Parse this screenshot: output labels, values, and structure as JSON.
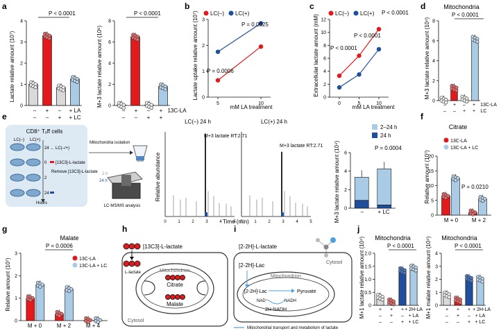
{
  "colors": {
    "red": "#e31a1c",
    "darkblue": "#1f4e9c",
    "lightblue": "#a9cbe6",
    "navy": "#173a78",
    "grey": "#d9d9d9",
    "text": "#111111",
    "pale_red": "#f0a6a6"
  },
  "panels": {
    "a": {
      "label": "a",
      "plot1_ylabel": "Lactate relative amount (10⁷)",
      "plot2_ylabel": "M+3 lactate relative amount (10⁶)",
      "pval1": "P < 0.0001",
      "pval2": "P < 0.0001",
      "xlabel": "13C-LA",
      "row1": [
        "–",
        "+",
        "–",
        "+ LA"
      ],
      "row2": [
        "–",
        "–",
        "+",
        "+ LC"
      ],
      "row1b": [
        "–",
        "+",
        "–",
        "+"
      ],
      "row2b": [
        "–",
        "–",
        "+",
        "+"
      ]
    },
    "b": {
      "label": "b",
      "ylabel": "Lactate uptake relative amount (10⁷)",
      "xlabel": "mM LA treatment",
      "legend_lcneg": "LC(–)",
      "legend_lcpos": "LC(+)",
      "p1": "P = 0.0006",
      "p2": "P = 0.0025"
    },
    "c": {
      "label": "c",
      "ylabel": "Extracellular lactate amount (mM)",
      "xlabel": "mM LA treatment",
      "legend_lcneg": "LC(–)",
      "legend_lcpos": "LC(+)",
      "p1": "P < 0.0001",
      "p2": "P < 0.0001",
      "p3": "P < 0.0001"
    },
    "d": {
      "label": "d",
      "title": "Mitochondria",
      "ylabel": "M+3 lactate relative amount (10⁴)",
      "pval": "P < 0.0001",
      "lbl1": "13C-LA",
      "lbl2": "LC"
    },
    "e": {
      "label": "e",
      "cells_title": "CD8⁺ Tₑff cells",
      "lcneg": "LC(–)",
      "lcpos": "LC(+)",
      "step0": "[13C3]-L-lactate",
      "step24": "24 ← LC(–/+)",
      "step0n": "0",
      "step2n": "2",
      "step24n": "24",
      "remove": "Remove [13C3]-L-lactate",
      "hours": "Hours",
      "mito_iso": "Mitochondria isolation",
      "twoh": "2 h",
      "twofourh": "24 h",
      "lcms": "LC-MS/MS analysis",
      "chrom1_title": "LC(–) 24 h",
      "chrom2_title": "LC(+) 24 h",
      "peak1": "M+3 lactate RT:2.71",
      "peak2": "M+3 lactate RT:2.71",
      "chrom_ylabel": "Relative abundance",
      "chrom_xlabel": "Time (min)",
      "bar_ylabel": "M+3 lactate relative amount (10⁴)",
      "legend1": "2–24 h",
      "legend2": "24 h",
      "pval": "P = 0.0004",
      "xt1": "–",
      "xt2": "+ LC"
    },
    "f": {
      "label": "f",
      "title": "Citrate",
      "ylabel": "Relative amount (10⁷)",
      "legend1": "13C-LA",
      "legend2": "13C-LA + LC",
      "pval": "P = 0.0210",
      "x1": "M + 0",
      "x2": "M + 2"
    },
    "g": {
      "label": "g",
      "title": "Malate",
      "ylabel": "Relative amount (10⁷)",
      "legend1": "13C-LA",
      "legend2": "13C-LA + LC",
      "pval": "P = 0.0006",
      "x1": "M + 0",
      "x2": "M + 2",
      "x3": "M + 4"
    },
    "h": {
      "label": "h",
      "tracer": "[13C3]-L-lactate",
      "llactate": "L-lactate",
      "mito": "Mitochondrion",
      "citrate": "Citrate",
      "malate": "Malate",
      "cytosol": "Cytosol"
    },
    "i": {
      "label": "i",
      "tracer": "[2-2H]-L-lactate",
      "cytosol": "Cytosol",
      "lac": "[2-2H]-Lac",
      "mito": "Mitochondrion",
      "lac2": "[2-2H]-Lac",
      "pyruvate": "Pyruvate",
      "nad": "NAD⁺",
      "nadh": "NADH",
      "nadh2": "2H-NADH",
      "legend": "Mitochondrial transport and metabolism of lactate"
    },
    "j": {
      "label": "j",
      "title1": "Mitochondria",
      "title2": "Mitochondria",
      "ylabel1": "M+1 lactate relative amount (10⁴)",
      "ylabel2": "M+1 malate relative amount (10⁴)",
      "pval1": "P < 0.0001",
      "pval2": "P < 0.0001",
      "row1": [
        "+",
        "+",
        "+",
        "+ 2H-LA"
      ],
      "row2": [
        "–",
        "+",
        "–",
        "+ LA"
      ],
      "row3": [
        "–",
        "–",
        "+",
        "+ LC"
      ]
    }
  },
  "chart_data": [
    {
      "id": "a1",
      "type": "bar",
      "categories": [
        "1",
        "2",
        "3",
        "4"
      ],
      "values": [
        1.0,
        3.3,
        0.85,
        1.25
      ],
      "ylim": [
        0,
        4
      ],
      "yticks": [
        "0",
        "1",
        "2",
        "3",
        "4"
      ]
    },
    {
      "id": "a2",
      "type": "bar",
      "categories": [
        "1",
        "2",
        "3",
        "4"
      ],
      "values": [
        0.05,
        6.5,
        0.05,
        1.8
      ],
      "ylim": [
        0,
        8
      ],
      "yticks": [
        "0",
        "2",
        "4",
        "6",
        "8"
      ]
    },
    {
      "id": "b",
      "type": "line",
      "x": [
        5,
        10
      ],
      "xticks": [
        "5",
        "10"
      ],
      "series": [
        {
          "name": "LC(–)",
          "values": [
            0.65,
            1.95
          ]
        },
        {
          "name": "LC(+)",
          "values": [
            1.75,
            2.85
          ]
        }
      ],
      "ylim": [
        0,
        3
      ],
      "yticks": [
        "0",
        "1",
        "2",
        "3"
      ]
    },
    {
      "id": "c",
      "type": "line",
      "x": [
        0,
        5,
        10
      ],
      "xticks": [
        "0",
        "5",
        "10"
      ],
      "series": [
        {
          "name": "LC(–)",
          "values": [
            3.3,
            6.4,
            10.5
          ]
        },
        {
          "name": "LC(+)",
          "values": [
            1.5,
            3.5,
            7.4
          ]
        }
      ],
      "ylim": [
        0,
        12
      ],
      "yticks": [
        "0",
        "2",
        "4",
        "6",
        "8",
        "10",
        "12"
      ]
    },
    {
      "id": "d",
      "type": "bar",
      "categories": [
        "1",
        "2",
        "3",
        "4"
      ],
      "values": [
        0.1,
        1.3,
        0.2,
        6.2
      ],
      "ylim": [
        0,
        8
      ],
      "yticks": [
        "0",
        "2",
        "4",
        "6",
        "8"
      ]
    },
    {
      "id": "e",
      "type": "bar",
      "categories": [
        "–",
        "+ LC"
      ],
      "series": [
        {
          "name": "2–24 h",
          "values": [
            2.5,
            3.9
          ]
        },
        {
          "name": "24 h",
          "values": [
            0.85,
            0.35
          ]
        }
      ],
      "ylim": [
        0,
        6
      ],
      "yticks": [
        "0",
        "2",
        "4",
        "6"
      ]
    },
    {
      "id": "f",
      "type": "bar",
      "categories": [
        "M + 0",
        "M + 2"
      ],
      "series": [
        {
          "name": "13C-LA",
          "values": [
            6.5,
            0.9
          ]
        },
        {
          "name": "13C-LA + LC",
          "values": [
            12.5,
            5.5
          ]
        }
      ],
      "ylim": [
        0,
        20
      ],
      "yticks": [
        "0",
        "5",
        "10",
        "15",
        "20"
      ]
    },
    {
      "id": "g",
      "type": "bar",
      "categories": [
        "M + 0",
        "M + 2",
        "M + 4"
      ],
      "series": [
        {
          "name": "13C-LA",
          "values": [
            1.0,
            0.3,
            0.02
          ]
        },
        {
          "name": "13C-LA + LC",
          "values": [
            1.6,
            1.4,
            0.02
          ]
        }
      ],
      "ylim": [
        0,
        3
      ],
      "yticks": [
        "0",
        "1",
        "2",
        "3"
      ]
    },
    {
      "id": "j1",
      "type": "bar",
      "categories": [
        "1",
        "2",
        "3",
        "4"
      ],
      "values": [
        0.33,
        0.15,
        1.35,
        1.45
      ],
      "ylim": [
        0,
        2.0
      ],
      "yticks": [
        "0",
        "0.5",
        "1.0",
        "1.5",
        "2.0"
      ]
    },
    {
      "id": "j2",
      "type": "bar",
      "categories": [
        "1",
        "2",
        "3",
        "4"
      ],
      "values": [
        0.85,
        0.45,
        2.1,
        2.05
      ],
      "ylim": [
        0,
        4
      ],
      "yticks": [
        "0",
        "1",
        "2",
        "3",
        "4"
      ]
    }
  ]
}
